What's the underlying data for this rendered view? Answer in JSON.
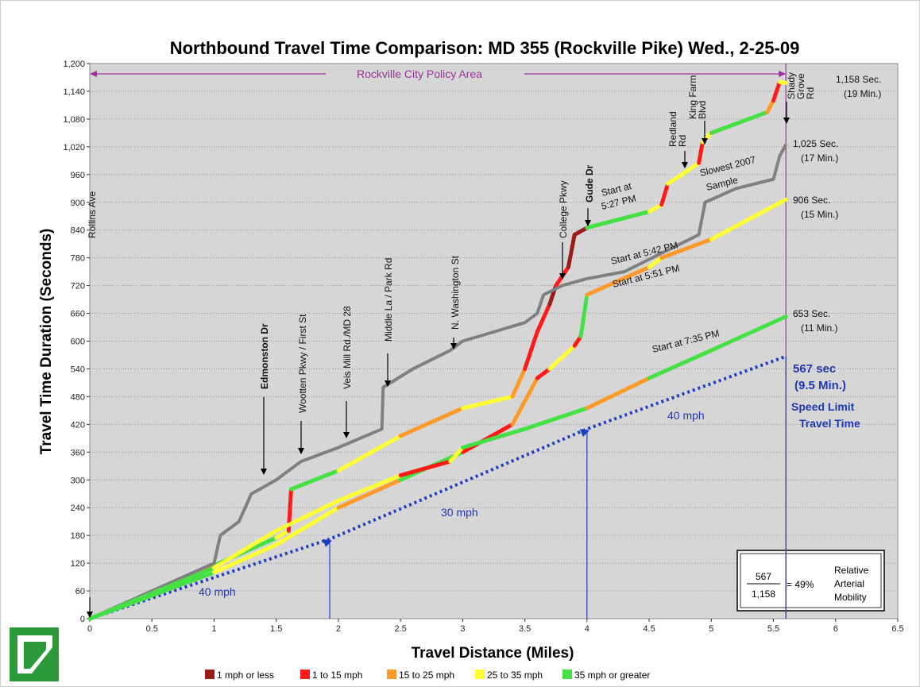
{
  "chart_data": {
    "type": "line",
    "title": "Northbound Travel Time Comparison: MD 355 (Rockville Pike) Wed., 2-25-09",
    "x_label": "Travel Distance (Miles)",
    "y_label": "Travel Time Duration (Seconds)",
    "xlim": [
      0,
      6.5
    ],
    "ylim": [
      0,
      1200
    ],
    "xticks": [
      0,
      0.5,
      1,
      1.5,
      2,
      2.5,
      3,
      3.5,
      4,
      4.5,
      5,
      5.5,
      6,
      6.5
    ],
    "yticks": [
      0,
      60,
      120,
      180,
      240,
      300,
      360,
      420,
      480,
      540,
      600,
      660,
      720,
      780,
      840,
      900,
      960,
      {
        "value": 1020,
        "label": "1,020"
      },
      {
        "value": 1080,
        "label": "1,080"
      },
      {
        "value": 1140,
        "label": "1,140"
      },
      {
        "value": 1200,
        "label": "1,200"
      }
    ],
    "grid": true,
    "runs": [
      {
        "x": [
          0,
          0.5,
          1,
          1.5,
          1.6,
          1.62,
          2,
          2.5,
          3,
          3.4,
          3.5,
          3.6,
          3.7,
          3.75,
          3.85,
          3.9,
          4,
          4.5,
          4.6,
          4.65,
          4.9,
          4.93,
          5,
          5.45,
          5.5,
          5.55,
          5.6
        ],
        "values": [
          0,
          55,
          115,
          175,
          190,
          280,
          320,
          395,
          455,
          480,
          540,
          620,
          680,
          720,
          760,
          830,
          845,
          880,
          895,
          940,
          985,
          1030,
          1050,
          1095,
          1120,
          1160,
          1158
        ],
        "segment_colors": [
          "#ffff33",
          "#ff9a2a",
          "#44e044",
          "#ffff33",
          "#ff1a1a",
          "#44e044",
          "#ffff33",
          "#ff9a2a",
          "#ffff33",
          "#ff9a2a",
          "#ff1a1a",
          "#ff1a1a",
          "#9b1b1b",
          "#ff1a1a",
          "#9b1b1b",
          "#9b1b1b",
          "#44e044",
          "#ffff33",
          "#ff1a1a",
          "#ffff33",
          "#ff1a1a",
          "#ffff33",
          "#44e044",
          "#ff9a2a",
          "#ff1a1a",
          "#ffff33"
        ]
      },
      {
        "x": [
          0,
          1,
          1.5,
          2,
          2.5,
          3,
          3.4,
          3.6,
          3.7,
          3.9,
          3.95,
          4,
          4.5,
          4.6,
          5,
          5.6
        ],
        "values": [
          0,
          100,
          160,
          240,
          300,
          360,
          420,
          520,
          540,
          590,
          610,
          700,
          760,
          780,
          820,
          906
        ],
        "segment_colors": [
          "#44e044",
          "#ffff33",
          "#ffff33",
          "#ff9a2a",
          "#44e044",
          "#ff1a1a",
          "#ff9a2a",
          "#ff1a1a",
          "#ffff33",
          "#ff1a1a",
          "#44e044",
          "#ff9a2a",
          "#ffff33",
          "#ff9a2a",
          "#ffff33"
        ]
      },
      {
        "x": [
          0,
          1,
          1.05,
          1.2,
          1.3,
          1.5,
          1.7,
          2,
          2.35,
          2.36,
          2.6,
          2.9,
          3,
          3.5,
          3.6,
          3.65,
          3.8,
          4,
          4.3,
          4.6,
          4.9,
          4.95,
          5.2,
          5.5,
          5.55,
          5.6
        ],
        "values": [
          0,
          120,
          180,
          210,
          270,
          300,
          340,
          370,
          410,
          500,
          540,
          580,
          600,
          640,
          660,
          700,
          720,
          735,
          750,
          790,
          830,
          900,
          930,
          950,
          1000,
          1025
        ],
        "color": "#808080"
      },
      {
        "x": [
          0,
          1,
          1.5,
          2,
          2.5,
          2.9,
          3,
          3.5,
          4,
          4.5,
          5,
          5.6
        ],
        "values": [
          0,
          110,
          190,
          255,
          310,
          340,
          370,
          410,
          455,
          520,
          580,
          653
        ],
        "segment_colors": [
          "#44e044",
          "#ffff33",
          "#ffff33",
          "#ffff33",
          "#ff1a1a",
          "#ffff33",
          "#44e044",
          "#44e044",
          "#ff9a2a",
          "#44e044",
          "#44e044"
        ]
      }
    ],
    "speed_limit": {
      "x": [
        0,
        1.93,
        4,
        5.6
      ],
      "values": [
        0,
        172,
        410,
        567
      ],
      "color": "#1f3fbf"
    },
    "policy_area": {
      "label": "Rockville City Policy Area",
      "x": [
        0,
        5.6
      ],
      "color": "#993399"
    },
    "streets": [
      [
        "Rollins Ave"
      ],
      [
        "Edmonston Dr"
      ],
      [
        "Wootten Pkwy / First St"
      ],
      [
        "Veis Mill Rd./MD 28"
      ],
      [
        "Middle La / Park Rd"
      ],
      [
        "N. Washington St"
      ],
      [
        "College Pkwy"
      ],
      [
        "Gude Dr"
      ],
      [
        "Redland",
        "Rd"
      ],
      [
        "King Farm",
        "Blvd"
      ],
      [
        "Shady",
        "Grove",
        "Rd"
      ]
    ],
    "run_labels": [
      [
        "Start at",
        "5:27 PM"
      ],
      [
        "Start at 5:42 PM"
      ],
      [
        "Start at 5:51 PM"
      ],
      [
        "Start at 7:35 PM"
      ],
      [
        "Slowest 2007",
        "Sample"
      ]
    ],
    "end_labels": [
      [
        "1,158 Sec.",
        "(19 Min.)"
      ],
      [
        "1,025 Sec.",
        "(17 Min.)"
      ],
      [
        "906 Sec.",
        "(15 Min.)"
      ],
      [
        "653 Sec.",
        "(11 Min.)"
      ]
    ],
    "speed_labels": [
      "40 mph",
      "30 mph",
      "40 mph"
    ],
    "speed_limit_label": [
      "567 sec",
      "(9.5 Min.)",
      "Speed Limit",
      "Travel Time"
    ],
    "mobility": {
      "numerator": "567",
      "denominator": "1,158",
      "ratio": "= 49%",
      "caption": [
        "Relative",
        "Arterial",
        "Mobility"
      ]
    },
    "legend": [
      {
        "label": "1 mph or less",
        "color": "#9b1b1b"
      },
      {
        "label": "1 to 15 mph",
        "color": "#ff1a1a"
      },
      {
        "label": "15 to 25 mph",
        "color": "#ff9a2a"
      },
      {
        "label": "25 to 35 mph",
        "color": "#ffff33"
      },
      {
        "label": "35 mph or greater",
        "color": "#44e044"
      }
    ]
  }
}
